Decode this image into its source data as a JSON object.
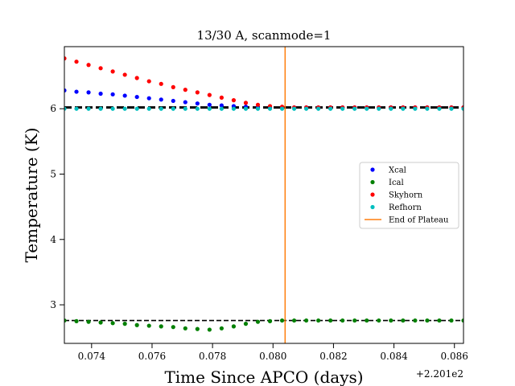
{
  "chart_data": {
    "type": "scatter",
    "title": "13/30 A, scanmode=1",
    "xlabel": "Time Since APCO (days)",
    "ylabel": "Temperature (K)",
    "x_offset_label": "+2.201e2",
    "xlim": [
      0.0731,
      0.0863
    ],
    "ylim": [
      2.41,
      6.95
    ],
    "xticks": [
      0.074,
      0.076,
      0.078,
      0.08,
      0.082,
      0.084,
      0.086
    ],
    "xtick_labels": [
      "0.074",
      "0.076",
      "0.078",
      "0.080",
      "0.082",
      "0.084",
      "0.086"
    ],
    "yticks": [
      3,
      4,
      5,
      6
    ],
    "ytick_labels": [
      "3",
      "4",
      "5",
      "6"
    ],
    "legend_position": "center-right",
    "x": [
      0.0731,
      0.0735,
      0.0739,
      0.0743,
      0.0747,
      0.0751,
      0.0755,
      0.0759,
      0.0763,
      0.0767,
      0.0771,
      0.0775,
      0.0779,
      0.0783,
      0.0787,
      0.0791,
      0.0795,
      0.0799,
      0.0803,
      0.0807,
      0.0811,
      0.0815,
      0.0819,
      0.0823,
      0.0827,
      0.0831,
      0.0835,
      0.0839,
      0.0843,
      0.0847,
      0.0851,
      0.0855,
      0.0859,
      0.0863
    ],
    "series": [
      {
        "name": "Xcal",
        "color": "#0000ff",
        "values": [
          6.28,
          6.26,
          6.25,
          6.23,
          6.22,
          6.2,
          6.18,
          6.16,
          6.14,
          6.12,
          6.1,
          6.08,
          6.06,
          6.05,
          6.04,
          6.03,
          6.02,
          6.02,
          6.02,
          6.02,
          6.02,
          6.02,
          6.02,
          6.02,
          6.02,
          6.02,
          6.02,
          6.02,
          6.02,
          6.02,
          6.02,
          6.02,
          6.02,
          6.02
        ]
      },
      {
        "name": "Ical",
        "color": "#008000",
        "values": [
          2.76,
          2.75,
          2.74,
          2.73,
          2.72,
          2.71,
          2.69,
          2.68,
          2.67,
          2.66,
          2.64,
          2.63,
          2.62,
          2.64,
          2.67,
          2.71,
          2.74,
          2.75,
          2.76,
          2.76,
          2.76,
          2.76,
          2.76,
          2.76,
          2.76,
          2.76,
          2.76,
          2.76,
          2.76,
          2.76,
          2.76,
          2.76,
          2.76,
          2.76
        ]
      },
      {
        "name": "Skyhorn",
        "color": "#ff0000",
        "values": [
          6.77,
          6.72,
          6.67,
          6.62,
          6.57,
          6.52,
          6.47,
          6.42,
          6.38,
          6.33,
          6.29,
          6.25,
          6.21,
          6.17,
          6.13,
          6.09,
          6.06,
          6.04,
          6.03,
          6.02,
          6.02,
          6.02,
          6.02,
          6.02,
          6.02,
          6.02,
          6.02,
          6.02,
          6.02,
          6.02,
          6.02,
          6.02,
          6.02,
          6.02
        ]
      },
      {
        "name": "Refhorn",
        "color": "#00bfbf",
        "values": [
          6.0,
          6.0,
          6.0,
          6.0,
          6.0,
          6.0,
          6.0,
          6.0,
          6.0,
          6.0,
          6.0,
          6.0,
          6.0,
          6.0,
          6.0,
          6.0,
          6.0,
          6.0,
          6.0,
          6.0,
          6.0,
          6.0,
          6.0,
          6.0,
          6.0,
          6.0,
          6.0,
          6.0,
          6.0,
          6.0,
          6.0,
          6.0,
          6.0,
          6.0
        ]
      }
    ],
    "reference_lines": [
      {
        "axis": "y",
        "value": 6.02,
        "style": "dashed",
        "color": "#000000"
      },
      {
        "axis": "y",
        "value": 2.76,
        "style": "dashed",
        "color": "#000000"
      }
    ],
    "vline": {
      "name": "End of Plateau",
      "x": 0.0804,
      "color": "#ff7f0e"
    }
  }
}
